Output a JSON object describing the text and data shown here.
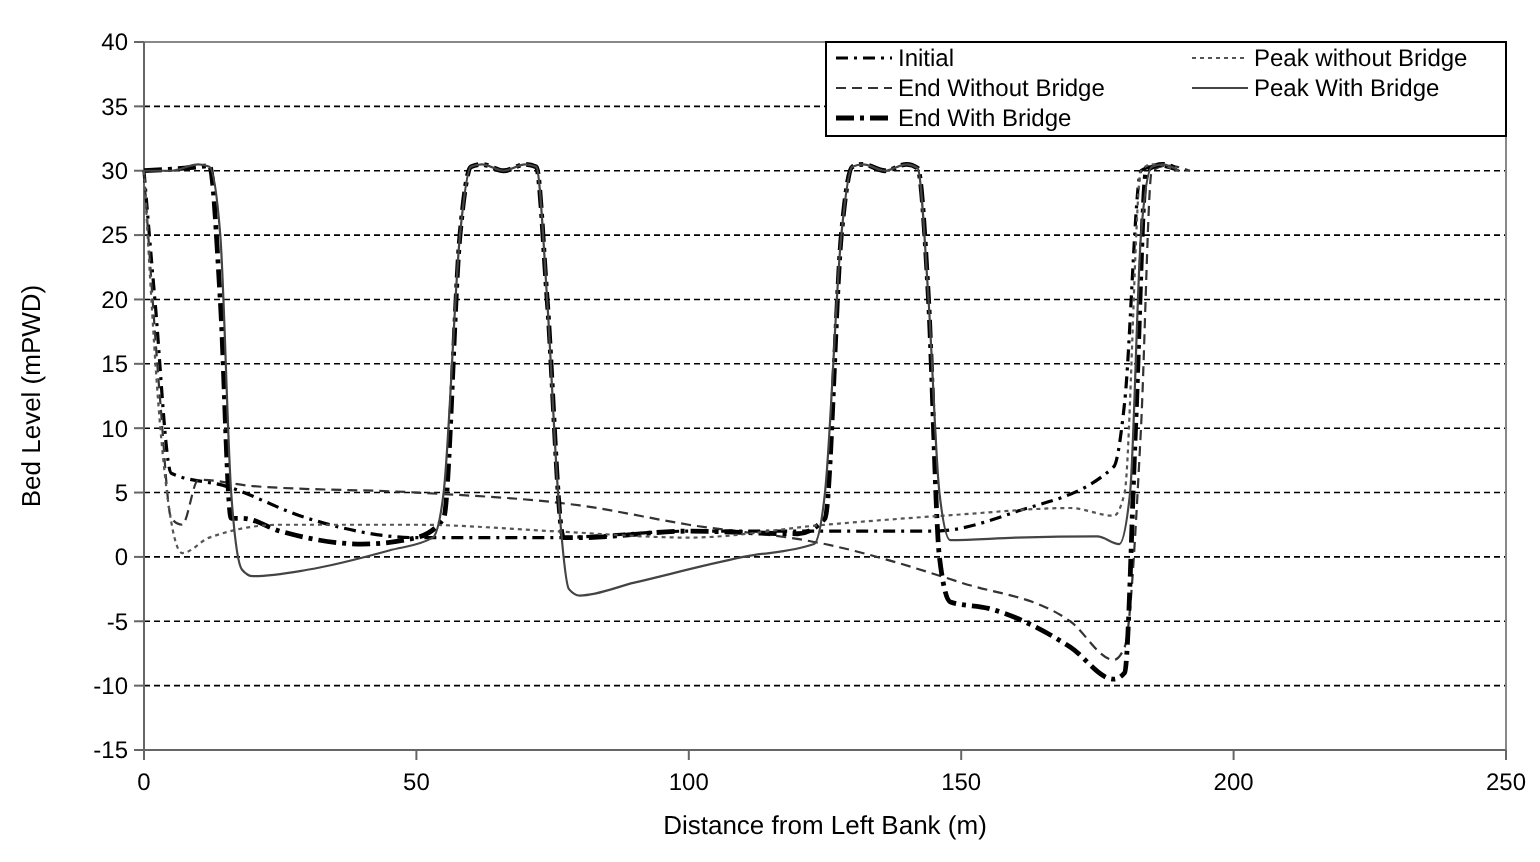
{
  "chart_data": {
    "type": "line",
    "xlabel": "Distance from Left Bank (m)",
    "ylabel": "Bed Level (mPWD)",
    "xlim": [
      0,
      250
    ],
    "xticks": [
      0,
      50,
      100,
      150,
      200,
      250
    ],
    "ylim": [
      -15,
      40
    ],
    "yticks": [
      -15,
      -10,
      -5,
      0,
      5,
      10,
      15,
      20,
      25,
      30,
      35,
      40
    ],
    "grid": "y",
    "legend": "top right",
    "marker": "none",
    "series": [
      {
        "name": "Initial",
        "color": "#000000",
        "line_style": "dashed",
        "x": [
          0,
          2,
          5,
          15,
          30,
          50,
          75,
          100,
          125,
          145,
          160,
          178,
          180,
          183,
          186,
          190
        ],
        "values": [
          30,
          20,
          6.5,
          5.5,
          3,
          1.5,
          1.5,
          2,
          2,
          2,
          3.5,
          7,
          12,
          30,
          30.4,
          30
        ]
      },
      {
        "name": "End Without Bridge",
        "color": "#333333",
        "line_style": "dashed",
        "x": [
          0,
          3,
          5,
          7,
          10,
          20,
          50,
          80,
          100,
          125,
          150,
          170,
          178,
          180,
          183,
          185,
          188,
          192
        ],
        "values": [
          30,
          12,
          3,
          2.5,
          6,
          5.5,
          5,
          4,
          2.5,
          1,
          -2,
          -5,
          -8,
          -7,
          10,
          30,
          30.4,
          30
        ]
      },
      {
        "name": "End With Bridge",
        "color": "#000000",
        "line_style": "dashed",
        "x": [
          0,
          10,
          12,
          14,
          16,
          18,
          25,
          40,
          50,
          55,
          58,
          60,
          62,
          66,
          70,
          72,
          74,
          77,
          80,
          100,
          120,
          125,
          128,
          130,
          132,
          136,
          140,
          142,
          144,
          146,
          148,
          155,
          170,
          178,
          180,
          182,
          184,
          187,
          190
        ],
        "values": [
          30,
          30.3,
          30.4,
          20,
          3,
          3,
          2,
          1,
          1.5,
          3,
          25,
          30.3,
          30.5,
          30,
          30.5,
          30.3,
          20,
          1.5,
          1.5,
          2,
          1.8,
          3,
          25,
          30.3,
          30.5,
          30,
          30.5,
          30.2,
          20,
          0,
          -3.5,
          -4,
          -7,
          -9.5,
          -9,
          10,
          30,
          30.5,
          30
        ]
      },
      {
        "name": "Peak without Bridge",
        "color": "#555555",
        "line_style": "dotted",
        "x": [
          0,
          3,
          7,
          12,
          25,
          50,
          75,
          100,
          125,
          150,
          170,
          178,
          180,
          183,
          185,
          190
        ],
        "values": [
          30,
          10,
          0.3,
          1.5,
          2.5,
          2.5,
          2,
          1.5,
          2.5,
          3.3,
          3.8,
          3.2,
          5,
          30,
          30.5,
          30
        ]
      },
      {
        "name": "Peak With Bridge",
        "color": "#444444",
        "line_style": "solid",
        "x": [
          0,
          5,
          10,
          12,
          14,
          16,
          18,
          20,
          30,
          45,
          53,
          55,
          58,
          60,
          62,
          66,
          70,
          72,
          74,
          76,
          78,
          80,
          90,
          110,
          123,
          125,
          128,
          130,
          132,
          136,
          140,
          142,
          144,
          146,
          148,
          160,
          175,
          179,
          181,
          183,
          185,
          187,
          190
        ],
        "values": [
          30,
          30,
          30.5,
          30.3,
          25,
          5,
          -1,
          -1.5,
          -1,
          0.5,
          1.5,
          5,
          25,
          30.3,
          30.5,
          30,
          30.5,
          30.3,
          20,
          5,
          -2.5,
          -3,
          -2,
          0,
          1,
          5,
          25,
          30.3,
          30.5,
          30,
          30.5,
          30.2,
          20,
          5,
          1.3,
          1.5,
          1.6,
          1,
          5,
          25,
          30.3,
          30.5,
          30
        ]
      }
    ]
  }
}
